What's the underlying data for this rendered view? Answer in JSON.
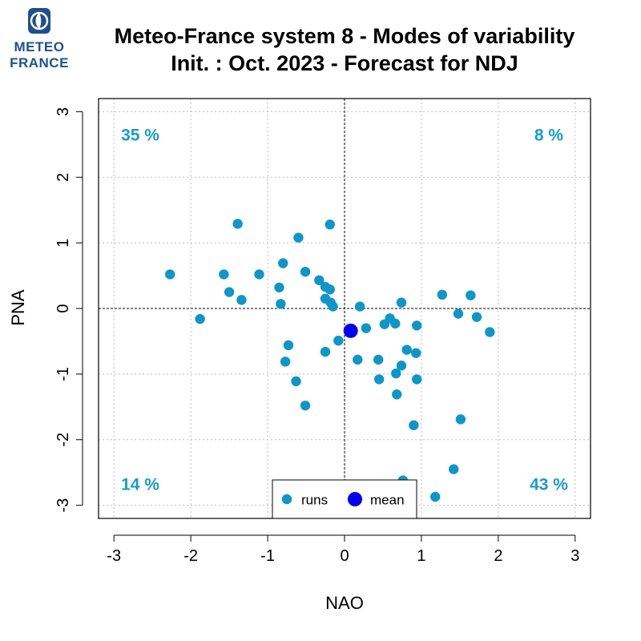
{
  "logo": {
    "line1": "METEO",
    "line2": "FRANCE",
    "icon": "meteo-france-emblem-icon"
  },
  "colors": {
    "runs": "#0f96c8",
    "mean": "#0000ee",
    "quadrant_text": "#1a9bcc",
    "grid": "#bdbdbd"
  },
  "chart_data": {
    "type": "scatter",
    "title": [
      "Meteo-France system 8 - Modes of variability",
      "Init. : Oct. 2023 - Forecast for NDJ"
    ],
    "xlabel": "NAO",
    "ylabel": "PNA",
    "xlim": [
      -3.2,
      3.2
    ],
    "ylim": [
      -3.2,
      3.2
    ],
    "xticks": [
      -3,
      -2,
      -1,
      0,
      1,
      2,
      3
    ],
    "yticks": [
      -3,
      -2,
      -1,
      0,
      1,
      2,
      3
    ],
    "grid": true,
    "reference_lines": {
      "x": 0,
      "y": 0
    },
    "quadrant_labels": {
      "top_left": "35 %",
      "top_right": "8 %",
      "bottom_left": "14 %",
      "bottom_right": "43 %"
    },
    "legend": {
      "position": "bottom-center",
      "entries": [
        "runs",
        "mean"
      ]
    },
    "series": [
      {
        "name": "runs",
        "points": [
          [
            -2.27,
            0.52
          ],
          [
            -1.88,
            -0.16
          ],
          [
            -1.39,
            1.29
          ],
          [
            -1.57,
            0.52
          ],
          [
            -1.5,
            0.25
          ],
          [
            -1.34,
            0.13
          ],
          [
            -1.11,
            0.52
          ],
          [
            -0.6,
            1.08
          ],
          [
            -0.8,
            0.69
          ],
          [
            -0.85,
            0.32
          ],
          [
            -0.83,
            0.07
          ],
          [
            -0.51,
            0.56
          ],
          [
            -0.33,
            0.43
          ],
          [
            -0.25,
            0.33
          ],
          [
            -0.19,
            0.29
          ],
          [
            -0.19,
            1.28
          ],
          [
            -0.25,
            0.15
          ],
          [
            -0.18,
            0.09
          ],
          [
            -0.15,
            0.03
          ],
          [
            0.2,
            0.03
          ],
          [
            0.74,
            0.09
          ],
          [
            1.27,
            0.21
          ],
          [
            1.64,
            0.2
          ],
          [
            1.48,
            -0.08
          ],
          [
            1.72,
            -0.13
          ],
          [
            1.89,
            -0.36
          ],
          [
            0.52,
            -0.24
          ],
          [
            0.59,
            -0.15
          ],
          [
            0.66,
            -0.23
          ],
          [
            0.94,
            -0.26
          ],
          [
            0.28,
            -0.3
          ],
          [
            -0.08,
            -0.49
          ],
          [
            -0.25,
            -0.66
          ],
          [
            -0.73,
            -0.56
          ],
          [
            -0.77,
            -0.81
          ],
          [
            -0.63,
            -1.11
          ],
          [
            -0.51,
            -1.48
          ],
          [
            0.17,
            -0.78
          ],
          [
            0.44,
            -0.78
          ],
          [
            0.81,
            -0.63
          ],
          [
            0.93,
            -0.68
          ],
          [
            0.74,
            -0.87
          ],
          [
            0.67,
            -0.99
          ],
          [
            0.45,
            -1.08
          ],
          [
            0.94,
            -1.08
          ],
          [
            0.68,
            -1.31
          ],
          [
            0.9,
            -1.78
          ],
          [
            1.51,
            -1.69
          ],
          [
            1.42,
            -2.45
          ],
          [
            1.18,
            -2.87
          ],
          [
            0.76,
            -2.62
          ]
        ]
      },
      {
        "name": "mean",
        "points": [
          [
            0.08,
            -0.34
          ]
        ]
      }
    ]
  }
}
